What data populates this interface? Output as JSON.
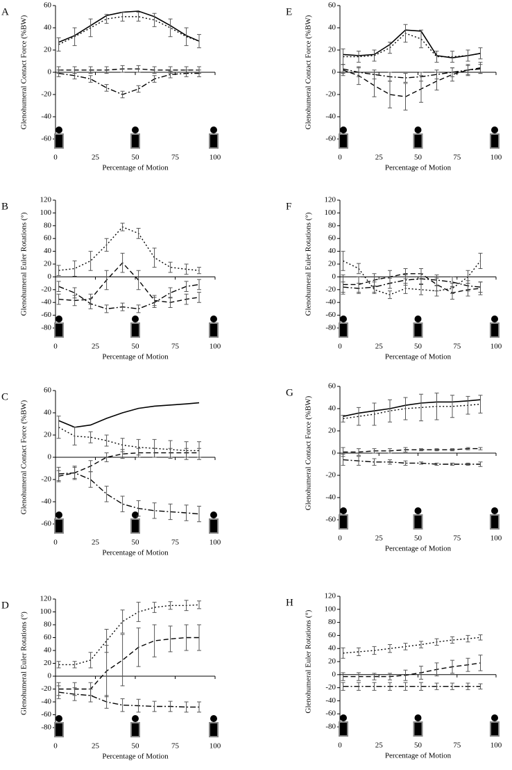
{
  "chart_data": [
    {
      "type": "line",
      "panel": "A",
      "y_label": "Glenohumeral Contact Force (%BW)",
      "x_label": "Percentage of Motion",
      "xlim": [
        0,
        100
      ],
      "xticks": [
        0,
        25,
        50,
        75,
        100
      ],
      "ylim": [
        -60,
        60
      ],
      "yticks": [
        60,
        40,
        20,
        0,
        -20,
        -40,
        -60
      ],
      "x": [
        2,
        12,
        22,
        32,
        42,
        52,
        62,
        72,
        82,
        90
      ],
      "series": [
        {
          "color": "#000000",
          "style": "solid",
          "values": [
            27,
            33,
            42,
            51,
            54,
            55,
            50,
            42,
            33,
            28
          ]
        },
        {
          "color": "#000000",
          "style": "dotted",
          "values": [
            25,
            32,
            40,
            48,
            50,
            50,
            47,
            40,
            32,
            28
          ],
          "errors": [
            6,
            8,
            8,
            4,
            4,
            4,
            6,
            8,
            8,
            6
          ]
        },
        {
          "color": "#000000",
          "style": "dashed",
          "values": [
            2,
            2,
            2,
            2,
            3,
            3,
            2,
            2,
            2,
            2
          ],
          "errors": [
            3,
            3,
            3,
            3,
            3,
            3,
            3,
            3,
            3,
            3
          ]
        },
        {
          "color": "#000000",
          "style": "dashdot",
          "values": [
            -1,
            -3,
            -6,
            -14,
            -20,
            -15,
            -6,
            -2,
            -1,
            -1
          ],
          "errors": [
            3,
            3,
            3,
            3,
            3,
            3,
            3,
            3,
            3,
            3
          ]
        }
      ]
    },
    {
      "type": "line",
      "panel": "B",
      "y_label": "Glenohumeral Euler Rotations (°)",
      "x_label": "Percentage of Motion",
      "xlim": [
        0,
        100
      ],
      "xticks": [
        0,
        25,
        50,
        75,
        100
      ],
      "ylim": [
        -80,
        120
      ],
      "yticks": [
        120,
        100,
        80,
        60,
        40,
        20,
        0,
        -20,
        -40,
        -60,
        -80
      ],
      "x": [
        2,
        12,
        22,
        32,
        42,
        52,
        62,
        72,
        82,
        90
      ],
      "series": [
        {
          "color": "#000000",
          "style": "dotted",
          "values": [
            10,
            13,
            25,
            50,
            78,
            68,
            30,
            15,
            12,
            10
          ],
          "errors": [
            8,
            12,
            15,
            10,
            6,
            8,
            15,
            8,
            8,
            5
          ]
        },
        {
          "color": "#000000",
          "style": "dashed",
          "values": [
            -35,
            -37,
            -35,
            -5,
            22,
            -5,
            -37,
            -40,
            -35,
            -32
          ],
          "errors": [
            8,
            8,
            8,
            15,
            15,
            15,
            8,
            8,
            8,
            8
          ]
        },
        {
          "color": "#000000",
          "style": "dashdot",
          "values": [
            -15,
            -25,
            -42,
            -50,
            -47,
            -50,
            -40,
            -25,
            -15,
            -12
          ],
          "errors": [
            8,
            8,
            8,
            6,
            6,
            6,
            8,
            8,
            8,
            8
          ]
        }
      ]
    },
    {
      "type": "line",
      "panel": "C",
      "y_label": "Glenohumeral Contact Force (%BW)",
      "x_label": "Percentage of Motion",
      "xlim": [
        0,
        100
      ],
      "xticks": [
        0,
        25,
        50,
        75,
        100
      ],
      "ylim": [
        -60,
        60
      ],
      "yticks": [
        60,
        40,
        20,
        0,
        -20,
        -40,
        -60
      ],
      "x": [
        2,
        12,
        22,
        32,
        42,
        52,
        62,
        72,
        82,
        90
      ],
      "series": [
        {
          "color": "#000000",
          "style": "solid",
          "values": [
            33,
            27,
            29,
            35,
            40,
            44,
            46,
            47,
            48,
            49
          ]
        },
        {
          "color": "#000000",
          "style": "dotted",
          "values": [
            27,
            19,
            18,
            15,
            11,
            9,
            8,
            7,
            6,
            6
          ],
          "errors": [
            10,
            8,
            5,
            5,
            6,
            7,
            8,
            8,
            8,
            8
          ]
        },
        {
          "color": "#000000",
          "style": "dashed",
          "values": [
            -17,
            -14,
            -8,
            0,
            3,
            4,
            4,
            4,
            4,
            4
          ],
          "errors": [
            5,
            5,
            5,
            4,
            4,
            4,
            4,
            4,
            4,
            4
          ]
        },
        {
          "color": "#000000",
          "style": "dashdot",
          "values": [
            -15,
            -14,
            -20,
            -33,
            -42,
            -46,
            -48,
            -49,
            -50,
            -51
          ],
          "errors": [
            6,
            6,
            7,
            7,
            7,
            7,
            7,
            7,
            7,
            7
          ]
        }
      ]
    },
    {
      "type": "line",
      "panel": "D",
      "y_label": "Glenohumeral Euler Rotations (°)",
      "x_label": "Percentage of Motion",
      "xlim": [
        0,
        100
      ],
      "xticks": [
        0,
        25,
        50,
        75,
        100
      ],
      "ylim": [
        -80,
        120
      ],
      "yticks": [
        120,
        100,
        80,
        60,
        40,
        20,
        0,
        -20,
        -40,
        -60,
        -80
      ],
      "x": [
        2,
        12,
        22,
        32,
        42,
        52,
        62,
        72,
        82,
        90
      ],
      "series": [
        {
          "color": "#000000",
          "style": "dotted",
          "values": [
            18,
            18,
            25,
            55,
            85,
            100,
            107,
            110,
            110,
            111
          ],
          "errors": [
            5,
            5,
            12,
            18,
            18,
            15,
            8,
            6,
            8,
            6
          ]
        },
        {
          "color": "#000000",
          "style": "dashed",
          "values": [
            -20,
            -20,
            -20,
            8,
            25,
            45,
            55,
            58,
            60,
            60
          ],
          "errors": [
            10,
            10,
            10,
            40,
            40,
            30,
            25,
            20,
            20,
            20
          ]
        },
        {
          "color": "#000000",
          "style": "dashdot",
          "values": [
            -25,
            -28,
            -30,
            -40,
            -45,
            -46,
            -47,
            -47,
            -48,
            -48
          ],
          "errors": [
            10,
            10,
            10,
            10,
            10,
            10,
            8,
            8,
            8,
            8
          ]
        }
      ]
    },
    {
      "type": "line",
      "panel": "E",
      "y_label": "Glenohumeral Contact Force (%BW)",
      "x_label": "Percentage of Motion",
      "xlim": [
        0,
        100
      ],
      "xticks": [
        0,
        25,
        50,
        75,
        100
      ],
      "ylim": [
        -60,
        60
      ],
      "yticks": [
        60,
        40,
        20,
        0,
        -20,
        -40,
        -60
      ],
      "x": [
        2,
        12,
        22,
        32,
        42,
        52,
        62,
        72,
        82,
        90
      ],
      "series": [
        {
          "color": "#000000",
          "style": "solid",
          "values": [
            16,
            15,
            16,
            25,
            38,
            37,
            15,
            13,
            15,
            17
          ]
        },
        {
          "color": "#000000",
          "style": "dotted",
          "values": [
            14,
            14,
            15,
            22,
            35,
            30,
            14,
            14,
            15,
            17
          ],
          "errors": [
            7,
            5,
            5,
            5,
            8,
            8,
            5,
            5,
            5,
            5
          ]
        },
        {
          "color": "#000000",
          "style": "dashed",
          "values": [
            2,
            -3,
            -12,
            -20,
            -22,
            -15,
            -8,
            -2,
            2,
            4
          ],
          "errors": [
            5,
            8,
            10,
            12,
            12,
            12,
            8,
            6,
            5,
            5
          ]
        },
        {
          "color": "#000000",
          "style": "dashdot",
          "values": [
            3,
            0,
            -2,
            -4,
            -5,
            -4,
            -2,
            0,
            2,
            3
          ],
          "errors": [
            4,
            4,
            4,
            4,
            4,
            4,
            4,
            4,
            4,
            4
          ]
        }
      ]
    },
    {
      "type": "line",
      "panel": "F",
      "y_label": "Glenohumeral Euler Rotations (°)",
      "x_label": "Percentage of Motion",
      "xlim": [
        0,
        100
      ],
      "xticks": [
        0,
        25,
        50,
        75,
        100
      ],
      "ylim": [
        -80,
        120
      ],
      "yticks": [
        120,
        100,
        80,
        60,
        40,
        20,
        0,
        -20,
        -40,
        -60,
        -80
      ],
      "x": [
        2,
        12,
        22,
        32,
        42,
        52,
        62,
        72,
        82,
        90
      ],
      "series": [
        {
          "color": "#000000",
          "style": "dotted",
          "values": [
            25,
            13,
            -20,
            -28,
            -18,
            -20,
            -22,
            -18,
            0,
            25
          ],
          "errors": [
            15,
            8,
            6,
            6,
            8,
            8,
            8,
            8,
            10,
            12
          ]
        },
        {
          "color": "#000000",
          "style": "dashed",
          "values": [
            -12,
            -12,
            -5,
            0,
            5,
            5,
            -12,
            -25,
            -20,
            -18
          ],
          "errors": [
            15,
            12,
            10,
            10,
            8,
            8,
            10,
            10,
            10,
            10
          ]
        },
        {
          "color": "#000000",
          "style": "dashdot",
          "values": [
            -16,
            -18,
            -16,
            -10,
            -5,
            -3,
            -5,
            -8,
            -14,
            -16
          ],
          "errors": [
            8,
            8,
            8,
            8,
            8,
            8,
            8,
            8,
            8,
            8
          ]
        }
      ]
    },
    {
      "type": "line",
      "panel": "G",
      "y_label": "Glenohumeral Contact Force (%BW)",
      "x_label": "Percentage of Motion",
      "xlim": [
        0,
        100
      ],
      "xticks": [
        0,
        25,
        50,
        75,
        100
      ],
      "ylim": [
        -60,
        60
      ],
      "yticks": [
        60,
        40,
        20,
        0,
        -20,
        -40,
        -60
      ],
      "x": [
        2,
        12,
        22,
        32,
        42,
        52,
        62,
        72,
        82,
        90
      ],
      "series": [
        {
          "color": "#000000",
          "style": "solid",
          "values": [
            33,
            36,
            38,
            40,
            43,
            45,
            46,
            46,
            47,
            48
          ]
        },
        {
          "color": "#000000",
          "style": "dotted",
          "values": [
            31,
            33,
            35,
            38,
            40,
            41,
            42,
            42,
            43,
            44
          ],
          "errors": [
            3,
            8,
            10,
            10,
            10,
            12,
            12,
            10,
            8,
            8
          ]
        },
        {
          "color": "#000000",
          "style": "dashed",
          "values": [
            1,
            1,
            2,
            2,
            3,
            3,
            3,
            3,
            4,
            4
          ],
          "errors": [
            4,
            3,
            2,
            2,
            2,
            1,
            1,
            1,
            1,
            1
          ]
        },
        {
          "color": "#000000",
          "style": "dashdot",
          "values": [
            -6,
            -7,
            -8,
            -8,
            -9,
            -9,
            -10,
            -10,
            -10,
            -10
          ],
          "errors": [
            5,
            4,
            3,
            2,
            2,
            1,
            1,
            1,
            1,
            2
          ]
        }
      ]
    },
    {
      "type": "line",
      "panel": "H",
      "y_label": "Glenohumeral Euler Rotations (°)",
      "x_label": "Percentage of Motion",
      "xlim": [
        0,
        100
      ],
      "xticks": [
        0,
        25,
        50,
        75,
        100
      ],
      "ylim": [
        -80,
        120
      ],
      "yticks": [
        120,
        100,
        80,
        60,
        40,
        20,
        0,
        -20,
        -40,
        -60,
        -80
      ],
      "x": [
        2,
        12,
        22,
        32,
        42,
        52,
        62,
        72,
        82,
        90
      ],
      "series": [
        {
          "color": "#000000",
          "style": "dotted",
          "values": [
            33,
            35,
            37,
            40,
            43,
            46,
            50,
            53,
            55,
            57
          ],
          "errors": [
            8,
            6,
            6,
            6,
            5,
            5,
            5,
            5,
            5,
            4
          ]
        },
        {
          "color": "#000000",
          "style": "dashed",
          "values": [
            -3,
            -3,
            -3,
            -3,
            -1,
            3,
            8,
            12,
            15,
            18
          ],
          "errors": [
            6,
            6,
            5,
            5,
            8,
            10,
            10,
            10,
            10,
            12
          ]
        },
        {
          "color": "#000000",
          "style": "dashdot",
          "values": [
            -18,
            -18,
            -18,
            -18,
            -18,
            -18,
            -18,
            -18,
            -18,
            -18
          ],
          "errors": [
            6,
            6,
            6,
            6,
            6,
            6,
            5,
            5,
            5,
            4
          ]
        }
      ]
    }
  ]
}
